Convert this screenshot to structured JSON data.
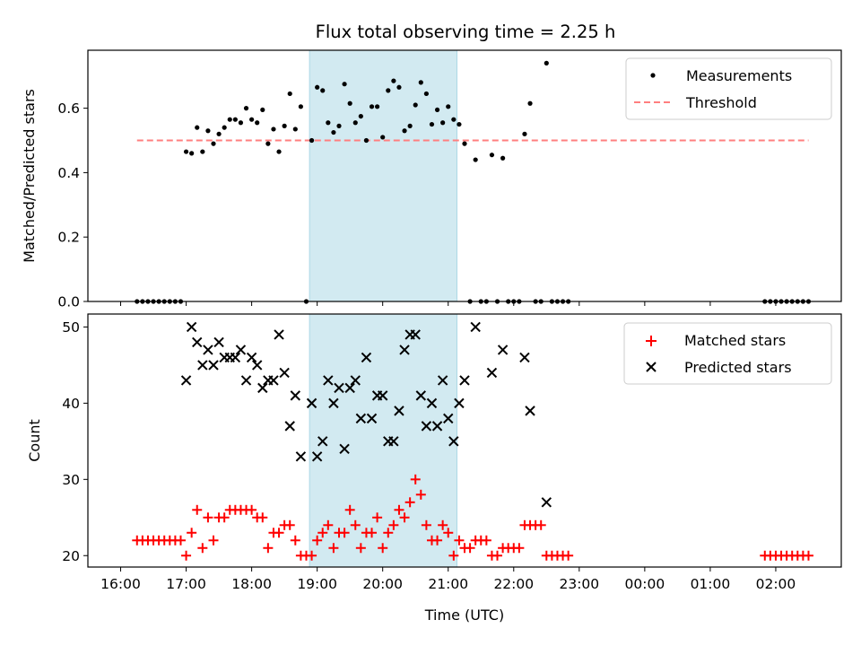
{
  "title": "Flux total observing time = 2.25 h",
  "colors": {
    "shade": "#add8e6",
    "threshold": "#ff7f7f",
    "matched": "#ff0000",
    "predicted": "#000000",
    "measurements": "#000000"
  },
  "chart_data": [
    {
      "type": "scatter",
      "title": "Flux total observing time = 2.25 h",
      "xlabel": "",
      "ylabel": "Matched/Predicted stars",
      "xlim_hours": [
        15.5,
        27.0
      ],
      "ylim": [
        0,
        0.78
      ],
      "yticks": [
        0.0,
        0.2,
        0.4,
        0.6
      ],
      "ytick_labels": [
        "0.0",
        "0.2",
        "0.4",
        "0.6"
      ],
      "shaded_span": {
        "start": "18:53",
        "end": "21:08"
      },
      "legend_position": "upper right",
      "legend": [
        "Measurements",
        "Threshold"
      ],
      "threshold": {
        "name": "Threshold",
        "y": 0.5,
        "x_start": "16:15",
        "x_end": "02:30"
      },
      "series": [
        {
          "name": "Measurements",
          "points": [
            [
              "16:15",
              0
            ],
            [
              "16:20",
              0
            ],
            [
              "16:25",
              0
            ],
            [
              "16:30",
              0
            ],
            [
              "16:35",
              0
            ],
            [
              "16:40",
              0
            ],
            [
              "16:45",
              0
            ],
            [
              "16:50",
              0
            ],
            [
              "16:55",
              0
            ],
            [
              "17:00",
              0.465
            ],
            [
              "17:05",
              0.46
            ],
            [
              "17:10",
              0.54
            ],
            [
              "17:15",
              0.465
            ],
            [
              "17:20",
              0.53
            ],
            [
              "17:25",
              0.49
            ],
            [
              "17:30",
              0.52
            ],
            [
              "17:35",
              0.54
            ],
            [
              "17:40",
              0.565
            ],
            [
              "17:45",
              0.565
            ],
            [
              "17:50",
              0.555
            ],
            [
              "17:55",
              0.6
            ],
            [
              "18:00",
              0.565
            ],
            [
              "18:05",
              0.555
            ],
            [
              "18:10",
              0.595
            ],
            [
              "18:15",
              0.49
            ],
            [
              "18:20",
              0.535
            ],
            [
              "18:25",
              0.465
            ],
            [
              "18:30",
              0.545
            ],
            [
              "18:35",
              0.645
            ],
            [
              "18:40",
              0.535
            ],
            [
              "18:45",
              0.605
            ],
            [
              "18:50",
              0
            ],
            [
              "18:55",
              0.5
            ],
            [
              "19:00",
              0.665
            ],
            [
              "19:05",
              0.655
            ],
            [
              "19:10",
              0.555
            ],
            [
              "19:15",
              0.525
            ],
            [
              "19:20",
              0.545
            ],
            [
              "19:25",
              0.675
            ],
            [
              "19:30",
              0.615
            ],
            [
              "19:35",
              0.555
            ],
            [
              "19:40",
              0.575
            ],
            [
              "19:45",
              0.5
            ],
            [
              "19:50",
              0.605
            ],
            [
              "19:55",
              0.605
            ],
            [
              "20:00",
              0.51
            ],
            [
              "20:05",
              0.655
            ],
            [
              "20:10",
              0.685
            ],
            [
              "20:15",
              0.665
            ],
            [
              "20:20",
              0.53
            ],
            [
              "20:25",
              0.545
            ],
            [
              "20:30",
              0.61
            ],
            [
              "20:35",
              0.68
            ],
            [
              "20:40",
              0.645
            ],
            [
              "20:45",
              0.55
            ],
            [
              "20:50",
              0.595
            ],
            [
              "20:55",
              0.555
            ],
            [
              "21:00",
              0.605
            ],
            [
              "21:05",
              0.565
            ],
            [
              "21:10",
              0.55
            ],
            [
              "21:15",
              0.49
            ],
            [
              "21:20",
              0
            ],
            [
              "21:25",
              0.44
            ],
            [
              "21:30",
              0
            ],
            [
              "21:35",
              0
            ],
            [
              "21:40",
              0.455
            ],
            [
              "21:45",
              0
            ],
            [
              "21:50",
              0.445
            ],
            [
              "21:55",
              0
            ],
            [
              "22:00",
              0
            ],
            [
              "22:05",
              0
            ],
            [
              "22:10",
              0.52
            ],
            [
              "22:15",
              0.615
            ],
            [
              "22:20",
              0
            ],
            [
              "22:25",
              0
            ],
            [
              "22:30",
              0.74
            ],
            [
              "22:35",
              0
            ],
            [
              "22:40",
              0
            ],
            [
              "22:45",
              0
            ],
            [
              "22:50",
              0
            ],
            [
              "01:50",
              0
            ],
            [
              "01:55",
              0
            ],
            [
              "02:00",
              0
            ],
            [
              "02:05",
              0
            ],
            [
              "02:10",
              0
            ],
            [
              "02:15",
              0
            ],
            [
              "02:20",
              0
            ],
            [
              "02:25",
              0
            ],
            [
              "02:30",
              0
            ]
          ]
        }
      ]
    },
    {
      "type": "scatter",
      "title": "",
      "xlabel": "Time (UTC)",
      "ylabel": "Count",
      "xlim_hours": [
        15.5,
        27.0
      ],
      "ylim": [
        18.5,
        51.7
      ],
      "yticks": [
        20,
        30,
        40,
        50
      ],
      "ytick_labels": [
        "20",
        "30",
        "40",
        "50"
      ],
      "xticks": [
        "16:00",
        "17:00",
        "18:00",
        "19:00",
        "20:00",
        "21:00",
        "22:00",
        "23:00",
        "00:00",
        "01:00",
        "02:00"
      ],
      "shaded_span": {
        "start": "18:53",
        "end": "21:08"
      },
      "legend_position": "upper right",
      "legend": [
        "Matched stars",
        "Predicted stars"
      ],
      "series": [
        {
          "name": "Matched stars",
          "points": [
            [
              "16:15",
              22
            ],
            [
              "16:20",
              22
            ],
            [
              "16:25",
              22
            ],
            [
              "16:30",
              22
            ],
            [
              "16:35",
              22
            ],
            [
              "16:40",
              22
            ],
            [
              "16:45",
              22
            ],
            [
              "16:50",
              22
            ],
            [
              "16:55",
              22
            ],
            [
              "17:00",
              20
            ],
            [
              "17:05",
              23
            ],
            [
              "17:10",
              26
            ],
            [
              "17:15",
              21
            ],
            [
              "17:20",
              25
            ],
            [
              "17:25",
              22
            ],
            [
              "17:30",
              25
            ],
            [
              "17:35",
              25
            ],
            [
              "17:40",
              26
            ],
            [
              "17:45",
              26
            ],
            [
              "17:50",
              26
            ],
            [
              "17:55",
              26
            ],
            [
              "18:00",
              26
            ],
            [
              "18:05",
              25
            ],
            [
              "18:10",
              25
            ],
            [
              "18:15",
              21
            ],
            [
              "18:20",
              23
            ],
            [
              "18:25",
              23
            ],
            [
              "18:30",
              24
            ],
            [
              "18:35",
              24
            ],
            [
              "18:40",
              22
            ],
            [
              "18:45",
              20
            ],
            [
              "18:50",
              20
            ],
            [
              "18:55",
              20
            ],
            [
              "19:00",
              22
            ],
            [
              "19:05",
              23
            ],
            [
              "19:10",
              24
            ],
            [
              "19:15",
              21
            ],
            [
              "19:20",
              23
            ],
            [
              "19:25",
              23
            ],
            [
              "19:30",
              26
            ],
            [
              "19:35",
              24
            ],
            [
              "19:40",
              21
            ],
            [
              "19:45",
              23
            ],
            [
              "19:50",
              23
            ],
            [
              "19:55",
              25
            ],
            [
              "20:00",
              21
            ],
            [
              "20:05",
              23
            ],
            [
              "20:10",
              24
            ],
            [
              "20:15",
              26
            ],
            [
              "20:20",
              25
            ],
            [
              "20:25",
              27
            ],
            [
              "20:30",
              30
            ],
            [
              "20:35",
              28
            ],
            [
              "20:40",
              24
            ],
            [
              "20:45",
              22
            ],
            [
              "20:50",
              22
            ],
            [
              "20:55",
              24
            ],
            [
              "21:00",
              23
            ],
            [
              "21:05",
              20
            ],
            [
              "21:10",
              22
            ],
            [
              "21:15",
              21
            ],
            [
              "21:20",
              21
            ],
            [
              "21:25",
              22
            ],
            [
              "21:30",
              22
            ],
            [
              "21:35",
              22
            ],
            [
              "21:40",
              20
            ],
            [
              "21:45",
              20
            ],
            [
              "21:50",
              21
            ],
            [
              "21:55",
              21
            ],
            [
              "22:00",
              21
            ],
            [
              "22:05",
              21
            ],
            [
              "22:10",
              24
            ],
            [
              "22:15",
              24
            ],
            [
              "22:20",
              24
            ],
            [
              "22:25",
              24
            ],
            [
              "22:30",
              20
            ],
            [
              "22:35",
              20
            ],
            [
              "22:40",
              20
            ],
            [
              "22:45",
              20
            ],
            [
              "22:50",
              20
            ],
            [
              "01:50",
              20
            ],
            [
              "01:55",
              20
            ],
            [
              "02:00",
              20
            ],
            [
              "02:05",
              20
            ],
            [
              "02:10",
              20
            ],
            [
              "02:15",
              20
            ],
            [
              "02:20",
              20
            ],
            [
              "02:25",
              20
            ],
            [
              "02:30",
              20
            ]
          ]
        },
        {
          "name": "Predicted stars",
          "points": [
            [
              "17:00",
              43
            ],
            [
              "17:05",
              50
            ],
            [
              "17:10",
              48
            ],
            [
              "17:15",
              45
            ],
            [
              "17:20",
              47
            ],
            [
              "17:25",
              45
            ],
            [
              "17:30",
              48
            ],
            [
              "17:35",
              46
            ],
            [
              "17:40",
              46
            ],
            [
              "17:45",
              46
            ],
            [
              "17:50",
              47
            ],
            [
              "17:55",
              43
            ],
            [
              "18:00",
              46
            ],
            [
              "18:05",
              45
            ],
            [
              "18:10",
              42
            ],
            [
              "18:15",
              43
            ],
            [
              "18:20",
              43
            ],
            [
              "18:25",
              49
            ],
            [
              "18:30",
              44
            ],
            [
              "18:35",
              37
            ],
            [
              "18:40",
              41
            ],
            [
              "18:45",
              33
            ],
            [
              "18:55",
              40
            ],
            [
              "19:00",
              33
            ],
            [
              "19:05",
              35
            ],
            [
              "19:10",
              43
            ],
            [
              "19:15",
              40
            ],
            [
              "19:20",
              42
            ],
            [
              "19:25",
              34
            ],
            [
              "19:30",
              42
            ],
            [
              "19:35",
              43
            ],
            [
              "19:40",
              38
            ],
            [
              "19:45",
              46
            ],
            [
              "19:50",
              38
            ],
            [
              "19:55",
              41
            ],
            [
              "20:00",
              41
            ],
            [
              "20:05",
              35
            ],
            [
              "20:10",
              35
            ],
            [
              "20:15",
              39
            ],
            [
              "20:20",
              47
            ],
            [
              "20:25",
              49
            ],
            [
              "20:30",
              49
            ],
            [
              "20:35",
              41
            ],
            [
              "20:40",
              37
            ],
            [
              "20:45",
              40
            ],
            [
              "20:50",
              37
            ],
            [
              "20:55",
              43
            ],
            [
              "21:00",
              38
            ],
            [
              "21:05",
              35
            ],
            [
              "21:10",
              40
            ],
            [
              "21:15",
              43
            ],
            [
              "21:25",
              50
            ],
            [
              "21:40",
              44
            ],
            [
              "21:50",
              47
            ],
            [
              "22:10",
              46
            ],
            [
              "22:15",
              39
            ],
            [
              "22:30",
              27
            ]
          ]
        }
      ]
    }
  ]
}
